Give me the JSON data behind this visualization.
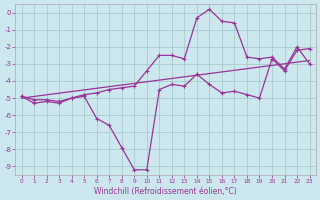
{
  "xlabel": "Windchill (Refroidissement éolien,°C)",
  "bg_color": "#cce8ee",
  "grid_color": "#aacccc",
  "line_color": "#993399",
  "xlim": [
    -0.5,
    23.5
  ],
  "ylim": [
    -9.5,
    0.5
  ],
  "xticks": [
    0,
    1,
    2,
    3,
    4,
    5,
    6,
    7,
    8,
    9,
    10,
    11,
    12,
    13,
    14,
    15,
    16,
    17,
    18,
    19,
    20,
    21,
    22,
    23
  ],
  "yticks": [
    0,
    -1,
    -2,
    -3,
    -4,
    -5,
    -6,
    -7,
    -8,
    -9
  ],
  "line_main_x": [
    0,
    1,
    2,
    3,
    4,
    5,
    6,
    7,
    8,
    9,
    10,
    11,
    12,
    13,
    14,
    15,
    16,
    17,
    18,
    19,
    20,
    21,
    22,
    23
  ],
  "line_main_y": [
    -4.9,
    -5.3,
    -5.2,
    -5.3,
    -5.0,
    -4.9,
    -6.2,
    -6.6,
    -7.9,
    -9.2,
    -9.2,
    -4.5,
    -4.2,
    -4.3,
    -3.6,
    -4.2,
    -4.7,
    -4.6,
    -4.8,
    -5.0,
    -2.7,
    -3.4,
    -2.2,
    -2.1
  ],
  "line_trend_x": [
    0,
    23
  ],
  "line_trend_y": [
    -5.0,
    -2.8
  ],
  "line_wave_x": [
    0,
    1,
    2,
    3,
    4,
    5,
    6,
    7,
    8,
    9,
    10,
    11,
    12,
    13,
    14,
    15,
    16,
    17,
    18,
    19,
    20,
    21,
    22,
    23
  ],
  "line_wave_y": [
    -4.9,
    -5.1,
    -5.1,
    -5.2,
    -5.0,
    -4.8,
    -4.7,
    -4.5,
    -4.4,
    -4.3,
    -3.4,
    -2.5,
    -2.5,
    -2.7,
    -0.3,
    0.2,
    -0.5,
    -0.6,
    -2.6,
    -2.7,
    -2.6,
    -3.3,
    -2.0,
    -3.0
  ]
}
